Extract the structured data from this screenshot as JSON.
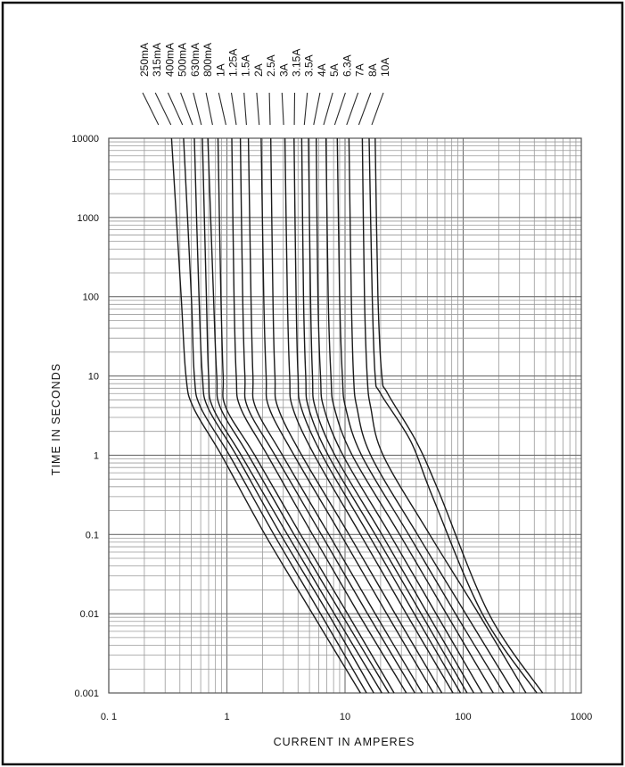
{
  "chart_data": {
    "type": "line",
    "title": "",
    "xlabel": "CURRENT  IN  AMPERES",
    "ylabel": "TIME  IN  SECONDS",
    "xscale": "log",
    "yscale": "log",
    "xlim": [
      0.1,
      1000
    ],
    "ylim": [
      0.001,
      10000
    ],
    "x_tick_labels": [
      "0. 1",
      "1",
      "10",
      "100",
      "1000"
    ],
    "y_tick_labels": [
      "0.001",
      "0.01",
      "0.1",
      "1",
      "10",
      "100",
      "1000",
      "10000"
    ],
    "grid": true,
    "legend": "ratings printed rotated above the plot",
    "series": [
      {
        "name": "250mA",
        "points": [
          [
            0.34,
            10000
          ],
          [
            0.41,
            100
          ],
          [
            0.45,
            10
          ],
          [
            0.52,
            4
          ],
          [
            0.9,
            1
          ],
          [
            2.1,
            0.1
          ],
          [
            5.3,
            0.01
          ],
          [
            13.5,
            0.001
          ]
        ]
      },
      {
        "name": "315mA",
        "points": [
          [
            0.43,
            10000
          ],
          [
            0.5,
            100
          ],
          [
            0.53,
            10
          ],
          [
            0.6,
            4
          ],
          [
            1.05,
            1
          ],
          [
            2.5,
            0.1
          ],
          [
            6.2,
            0.01
          ],
          [
            15.2,
            0.001
          ]
        ]
      },
      {
        "name": "400mA",
        "points": [
          [
            0.53,
            10000
          ],
          [
            0.58,
            100
          ],
          [
            0.62,
            10
          ],
          [
            0.69,
            4
          ],
          [
            1.2,
            1
          ],
          [
            2.85,
            0.1
          ],
          [
            7.2,
            0.01
          ],
          [
            17.5,
            0.001
          ]
        ]
      },
      {
        "name": "500mA",
        "points": [
          [
            0.62,
            10000
          ],
          [
            0.67,
            100
          ],
          [
            0.7,
            10
          ],
          [
            0.76,
            4
          ],
          [
            1.32,
            1
          ],
          [
            3.25,
            0.1
          ],
          [
            8.1,
            0.01
          ],
          [
            20.5,
            0.001
          ]
        ]
      },
      {
        "name": "630mA",
        "points": [
          [
            0.69,
            10000
          ],
          [
            0.77,
            100
          ],
          [
            0.82,
            10
          ],
          [
            0.88,
            4
          ],
          [
            1.52,
            1
          ],
          [
            3.7,
            0.1
          ],
          [
            9.3,
            0.01
          ],
          [
            23.5,
            0.001
          ]
        ]
      },
      {
        "name": "800mA",
        "points": [
          [
            0.84,
            10000
          ],
          [
            0.89,
            100
          ],
          [
            0.93,
            10
          ],
          [
            0.98,
            4
          ],
          [
            1.72,
            1
          ],
          [
            4.2,
            0.1
          ],
          [
            10.5,
            0.01
          ],
          [
            26,
            0.001
          ]
        ]
      },
      {
        "name": "1A",
        "points": [
          [
            1.1,
            10000
          ],
          [
            1.15,
            100
          ],
          [
            1.2,
            10
          ],
          [
            1.3,
            4
          ],
          [
            2.2,
            1
          ],
          [
            5.3,
            0.1
          ],
          [
            13,
            0.01
          ],
          [
            33,
            0.001
          ]
        ]
      },
      {
        "name": "1.25A",
        "points": [
          [
            1.3,
            10000
          ],
          [
            1.36,
            100
          ],
          [
            1.42,
            10
          ],
          [
            1.5,
            4
          ],
          [
            2.55,
            1
          ],
          [
            6.3,
            0.1
          ],
          [
            15.5,
            0.01
          ],
          [
            39,
            0.001
          ]
        ]
      },
      {
        "name": "1.5A",
        "points": [
          [
            1.52,
            10000
          ],
          [
            1.6,
            100
          ],
          [
            1.66,
            10
          ],
          [
            1.75,
            4
          ],
          [
            2.95,
            1
          ],
          [
            7.3,
            0.1
          ],
          [
            18,
            0.01
          ],
          [
            45,
            0.001
          ]
        ]
      },
      {
        "name": "2A",
        "points": [
          [
            1.95,
            10000
          ],
          [
            2.05,
            100
          ],
          [
            2.15,
            10
          ],
          [
            2.27,
            4
          ],
          [
            3.7,
            1
          ],
          [
            9.2,
            0.1
          ],
          [
            22.5,
            0.01
          ],
          [
            56,
            0.001
          ]
        ]
      },
      {
        "name": "2.5A",
        "points": [
          [
            2.35,
            10000
          ],
          [
            2.45,
            100
          ],
          [
            2.55,
            10
          ],
          [
            2.7,
            4
          ],
          [
            4.3,
            1
          ],
          [
            10.8,
            0.1
          ],
          [
            26.5,
            0.01
          ],
          [
            66,
            0.001
          ]
        ]
      },
      {
        "name": "3A",
        "points": [
          [
            3.1,
            10000
          ],
          [
            3.25,
            100
          ],
          [
            3.4,
            10
          ],
          [
            3.6,
            4
          ],
          [
            5.5,
            1
          ],
          [
            13.5,
            0.1
          ],
          [
            33,
            0.01
          ],
          [
            82,
            0.001
          ]
        ]
      },
      {
        "name": "3.15A",
        "points": [
          [
            3.7,
            10000
          ],
          [
            3.85,
            100
          ],
          [
            4,
            10
          ],
          [
            4.25,
            4
          ],
          [
            6.4,
            1
          ],
          [
            15.8,
            0.1
          ],
          [
            38.5,
            0.01
          ],
          [
            95,
            0.001
          ]
        ]
      },
      {
        "name": "3.5A",
        "points": [
          [
            4.3,
            10000
          ],
          [
            4.45,
            100
          ],
          [
            4.65,
            10
          ],
          [
            4.9,
            4
          ],
          [
            7.2,
            1
          ],
          [
            18,
            0.1
          ],
          [
            44,
            0.01
          ],
          [
            108,
            0.001
          ]
        ]
      },
      {
        "name": "4A",
        "points": [
          [
            4.9,
            10000
          ],
          [
            5.1,
            100
          ],
          [
            5.3,
            10
          ],
          [
            5.6,
            4
          ],
          [
            8.2,
            1
          ],
          [
            20.5,
            0.1
          ],
          [
            50,
            0.01
          ],
          [
            123,
            0.001
          ]
        ]
      },
      {
        "name": "5A",
        "points": [
          [
            5.7,
            10000
          ],
          [
            5.9,
            100
          ],
          [
            6.2,
            10
          ],
          [
            6.6,
            4
          ],
          [
            9.6,
            1
          ],
          [
            24,
            0.1
          ],
          [
            59,
            0.01
          ],
          [
            145,
            0.001
          ]
        ]
      },
      {
        "name": "6.3A",
        "points": [
          [
            6.9,
            10000
          ],
          [
            7.2,
            100
          ],
          [
            7.6,
            10
          ],
          [
            8.1,
            4
          ],
          [
            11.5,
            1
          ],
          [
            29,
            0.1
          ],
          [
            72,
            0.01
          ],
          [
            180,
            0.001
          ]
        ]
      },
      {
        "name": "7A",
        "points": [
          [
            8.6,
            10000
          ],
          [
            9,
            100
          ],
          [
            9.5,
            10
          ],
          [
            10.1,
            4
          ],
          [
            13.8,
            1
          ],
          [
            34.5,
            0.1
          ],
          [
            86,
            0.01
          ],
          [
            220,
            0.001
          ]
        ]
      },
      {
        "name": "8A",
        "points": [
          [
            10.8,
            10000
          ],
          [
            11.3,
            100
          ],
          [
            11.8,
            10
          ],
          [
            12.6,
            4
          ],
          [
            16.5,
            1
          ],
          [
            41,
            0.1
          ],
          [
            105,
            0.01
          ],
          [
            270,
            0.001
          ]
        ]
      },
      {
        "name": "10A",
        "points": [
          [
            14,
            10000
          ],
          [
            14.6,
            100
          ],
          [
            15.4,
            10
          ],
          [
            16.5,
            4
          ],
          [
            21,
            1
          ],
          [
            52,
            0.1
          ],
          [
            135,
            0.01
          ],
          [
            340,
            0.001
          ]
        ]
      },
      {
        "points": [
          [
            18,
            10000
          ],
          [
            19,
            100
          ],
          [
            20.5,
            10
          ],
          [
            23,
            6
          ],
          [
            40,
            1.5
          ],
          [
            62,
            0.35
          ],
          [
            165,
            0.01
          ],
          [
            470,
            0.001
          ]
        ]
      },
      {
        "points": [
          [
            16,
            10000
          ],
          [
            17,
            100
          ],
          [
            18,
            10
          ],
          [
            20,
            6
          ],
          [
            36,
            1.5
          ],
          [
            55,
            0.3
          ],
          [
            145,
            0.01
          ],
          [
            420,
            0.001
          ]
        ]
      }
    ]
  }
}
